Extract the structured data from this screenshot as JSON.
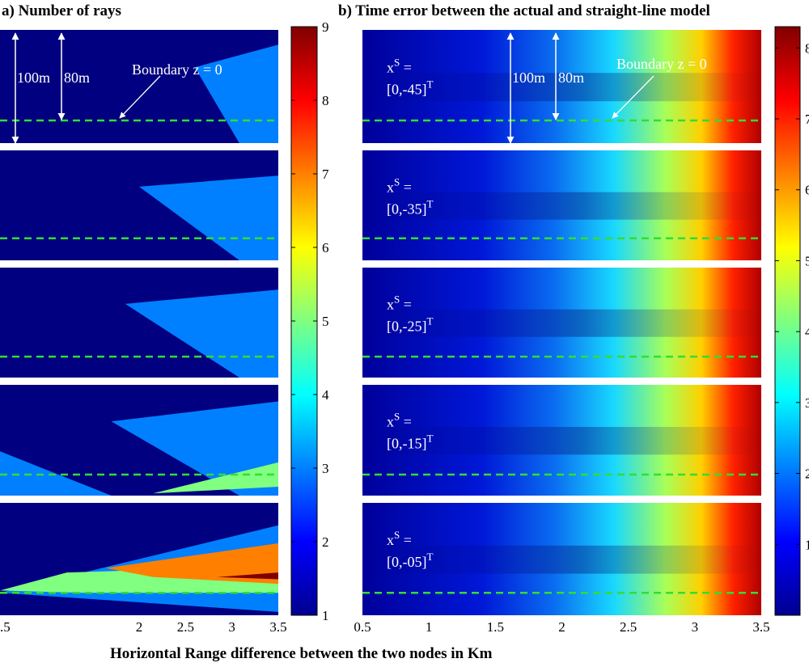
{
  "chart_data": [
    {
      "panel": "a",
      "type": "heatmap",
      "title": "a) Number of rays",
      "xlim": [
        0.5,
        3.5
      ],
      "x_ticks": [
        ".5",
        "2",
        "2.5",
        "3",
        "3.5"
      ],
      "colorbar": {
        "range": [
          1,
          9
        ],
        "ticks": [
          "1",
          "2",
          "3",
          "4",
          "5",
          "6",
          "7",
          "8",
          "9"
        ]
      },
      "subplots": [
        {
          "boundary_label": "Boundary z = 0",
          "arrow_labels": [
            "100m",
            "80m"
          ],
          "regions": [
            {
              "value": 3
            }
          ]
        },
        {
          "regions": [
            {
              "value": 3
            }
          ]
        },
        {
          "regions": [
            {
              "value": 3
            }
          ]
        },
        {
          "regions": [
            {
              "value": 3
            },
            {
              "value": 5
            }
          ]
        },
        {
          "regions": [
            {
              "value": 3
            },
            {
              "value": 5
            },
            {
              "value": 7
            },
            {
              "value": 9
            }
          ]
        }
      ]
    },
    {
      "panel": "b",
      "type": "heatmap",
      "title": "b) Time error between the actual and straight-line model",
      "xlim": [
        0.5,
        3.5
      ],
      "x_ticks": [
        "0.5",
        "1",
        "1.5",
        "2",
        "2.5",
        "3",
        "3.5"
      ],
      "colorbar": {
        "range": [
          0,
          8.3
        ],
        "ticks": [
          "1",
          "2",
          "3",
          "4",
          "5",
          "6",
          "7",
          "8"
        ]
      },
      "subplots": [
        {
          "source": "[0,-45]",
          "boundary_label": "Boundary z = 0",
          "arrow_labels": [
            "100m",
            "80m"
          ]
        },
        {
          "source": "[0,-35]"
        },
        {
          "source": "[0,-25]"
        },
        {
          "source": "[0,-15]"
        },
        {
          "source": "[0,-05]"
        }
      ]
    }
  ],
  "source_prefix": "x",
  "source_sup": "S",
  "source_eq": " =",
  "transpose_sup": "T",
  "xlabel": "Horizontal Range difference between the two nodes in Km",
  "colors": {
    "boundary_line": "#33dd33",
    "annotation": "#ffffff"
  }
}
